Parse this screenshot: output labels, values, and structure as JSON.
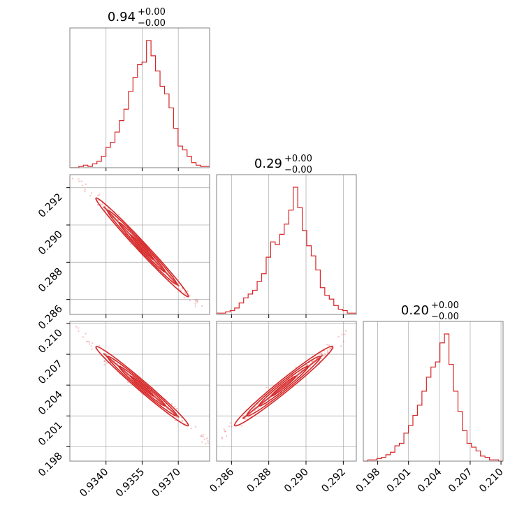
{
  "chart_data": {
    "type": "corner",
    "color": "#d62728",
    "grid": true,
    "titles": [
      {
        "value": "0.94",
        "plus": "+0.00",
        "minus": "−0.00"
      },
      {
        "value": "0.29",
        "plus": "+0.00",
        "minus": "−0.00"
      },
      {
        "value": "0.20",
        "plus": "+0.00",
        "minus": "−0.00"
      }
    ],
    "parameters": [
      {
        "range": [
          0.9325,
          0.9383
        ],
        "ticks": [
          0.934,
          0.9355,
          0.937
        ],
        "tick_labels": [
          "0.9340",
          "0.9355",
          "0.9370"
        ]
      },
      {
        "range": [
          0.2852,
          0.2927
        ],
        "ticks": [
          0.286,
          0.288,
          0.29,
          0.292
        ],
        "tick_labels": [
          "0.286",
          "0.288",
          "0.290",
          "0.292"
        ]
      },
      {
        "range": [
          0.1966,
          0.2102
        ],
        "ticks": [
          0.198,
          0.201,
          0.204,
          0.207,
          0.21
        ],
        "tick_labels": [
          "0.198",
          "0.201",
          "0.204",
          "0.207",
          "0.210"
        ]
      }
    ],
    "histograms": [
      [
        0,
        0,
        0.01,
        0.02,
        0.01,
        0.03,
        0.05,
        0.09,
        0.16,
        0.2,
        0.28,
        0.37,
        0.46,
        0.6,
        0.71,
        0.81,
        0.83,
        1.0,
        0.88,
        0.76,
        0.64,
        0.58,
        0.47,
        0.31,
        0.17,
        0.14,
        0.09,
        0.04,
        0.02,
        0.01,
        0.01
      ],
      [
        0.01,
        0.01,
        0.02,
        0.03,
        0.05,
        0.09,
        0.13,
        0.16,
        0.19,
        0.26,
        0.32,
        0.45,
        0.57,
        0.55,
        0.63,
        0.71,
        0.82,
        1.0,
        0.84,
        0.66,
        0.54,
        0.46,
        0.35,
        0.21,
        0.15,
        0.12,
        0.07,
        0.04,
        0.03,
        0.01,
        0.01
      ],
      [
        0,
        0.01,
        0.01,
        0.02,
        0.03,
        0.05,
        0.07,
        0.12,
        0.14,
        0.22,
        0.28,
        0.36,
        0.44,
        0.55,
        0.66,
        0.74,
        0.78,
        0.93,
        1.0,
        0.76,
        0.55,
        0.39,
        0.24,
        0.14,
        0.11,
        0.08,
        0.04,
        0.03,
        0.01,
        0.01,
        0.0
      ]
    ],
    "correlations": [
      [
        1,
        -0.995,
        -0.993
      ],
      [
        -0.995,
        1,
        0.99
      ],
      [
        -0.993,
        0.99,
        1
      ]
    ],
    "centers": [
      0.9355,
      0.2888,
      0.2039
    ],
    "spreads": [
      0.0008,
      0.0011,
      0.0016
    ]
  }
}
